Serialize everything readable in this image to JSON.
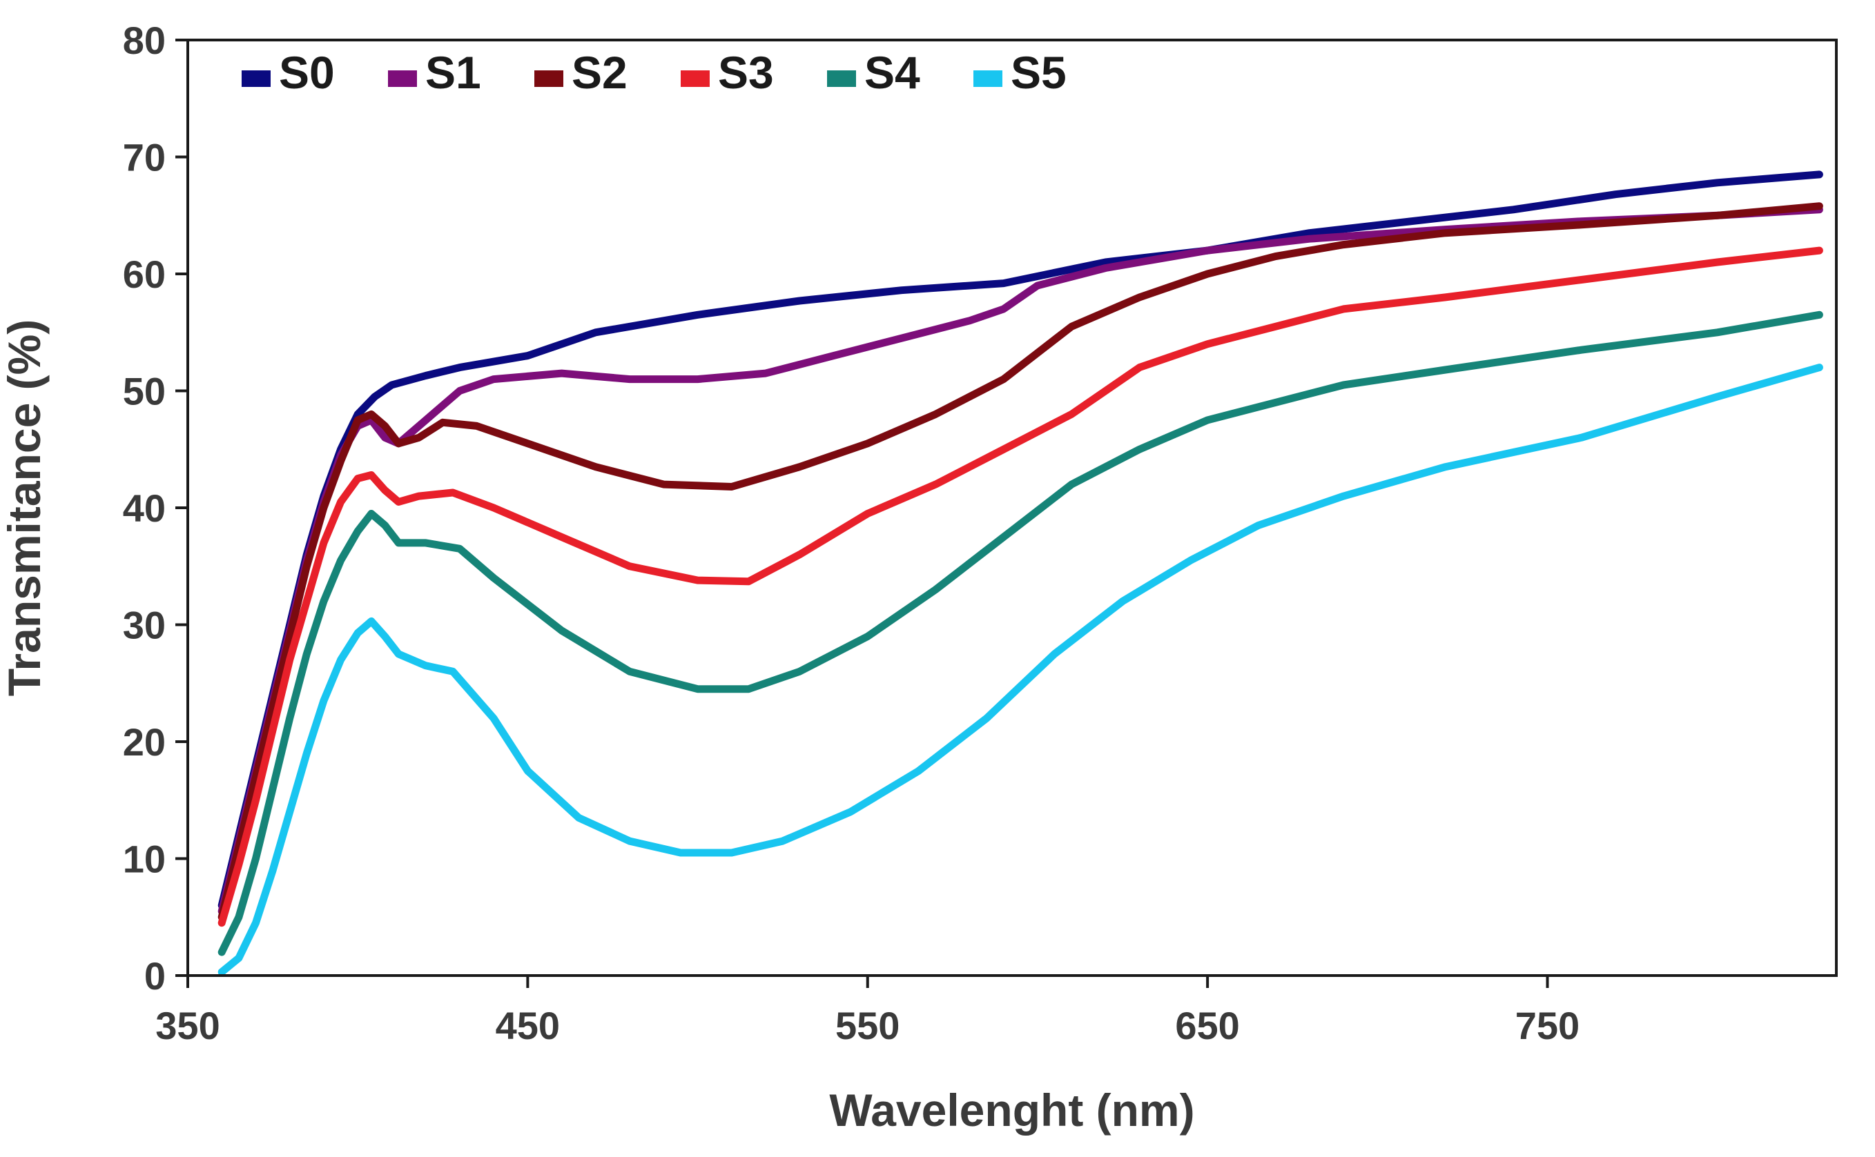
{
  "chart_data": {
    "type": "line",
    "title": "",
    "xlabel": "Wavelenght (nm)",
    "ylabel": "Transmitance (%)",
    "xlim": [
      350,
      835
    ],
    "ylim": [
      0,
      80
    ],
    "xticks": [
      350,
      450,
      550,
      650,
      750
    ],
    "yticks": [
      0,
      10,
      20,
      30,
      40,
      50,
      60,
      70,
      80
    ],
    "xtick_labels": [
      "350",
      "450",
      "550",
      "650",
      "750"
    ],
    "ytick_labels": [
      "0",
      "10",
      "20",
      "30",
      "40",
      "50",
      "60",
      "70",
      "80"
    ],
    "grid": false,
    "legend_position": "top-left",
    "series": [
      {
        "name": "S0",
        "color": "#0a0a80",
        "points": [
          [
            360,
            6
          ],
          [
            365,
            12
          ],
          [
            370,
            18
          ],
          [
            375,
            24
          ],
          [
            380,
            30
          ],
          [
            385,
            36
          ],
          [
            390,
            41
          ],
          [
            395,
            45
          ],
          [
            400,
            48
          ],
          [
            405,
            49.5
          ],
          [
            410,
            50.5
          ],
          [
            420,
            51.3
          ],
          [
            430,
            52
          ],
          [
            450,
            53
          ],
          [
            470,
            55
          ],
          [
            500,
            56.5
          ],
          [
            530,
            57.7
          ],
          [
            560,
            58.6
          ],
          [
            590,
            59.2
          ],
          [
            620,
            61
          ],
          [
            650,
            62
          ],
          [
            680,
            63.5
          ],
          [
            710,
            64.5
          ],
          [
            740,
            65.5
          ],
          [
            770,
            66.8
          ],
          [
            800,
            67.8
          ],
          [
            830,
            68.5
          ]
        ]
      },
      {
        "name": "S1",
        "color": "#7d0e7a",
        "points": [
          [
            360,
            5.5
          ],
          [
            365,
            11.5
          ],
          [
            370,
            17.5
          ],
          [
            375,
            23.5
          ],
          [
            380,
            29.5
          ],
          [
            385,
            35.5
          ],
          [
            390,
            40.5
          ],
          [
            395,
            44.5
          ],
          [
            400,
            47
          ],
          [
            404,
            47.5
          ],
          [
            408,
            46
          ],
          [
            412,
            45.5
          ],
          [
            420,
            47.5
          ],
          [
            430,
            50
          ],
          [
            440,
            51
          ],
          [
            460,
            51.5
          ],
          [
            480,
            51
          ],
          [
            500,
            51
          ],
          [
            520,
            51.5
          ],
          [
            540,
            53
          ],
          [
            560,
            54.5
          ],
          [
            580,
            56
          ],
          [
            590,
            57
          ],
          [
            600,
            59
          ],
          [
            620,
            60.5
          ],
          [
            650,
            62
          ],
          [
            680,
            63
          ],
          [
            720,
            63.8
          ],
          [
            760,
            64.5
          ],
          [
            800,
            65
          ],
          [
            830,
            65.5
          ]
        ]
      },
      {
        "name": "S2",
        "color": "#7b0a10",
        "points": [
          [
            360,
            5
          ],
          [
            365,
            11
          ],
          [
            370,
            17
          ],
          [
            375,
            23
          ],
          [
            380,
            29
          ],
          [
            385,
            35
          ],
          [
            390,
            40
          ],
          [
            395,
            44
          ],
          [
            400,
            47.5
          ],
          [
            404,
            48
          ],
          [
            408,
            47
          ],
          [
            412,
            45.5
          ],
          [
            418,
            46
          ],
          [
            425,
            47.3
          ],
          [
            435,
            47
          ],
          [
            450,
            45.5
          ],
          [
            470,
            43.5
          ],
          [
            490,
            42
          ],
          [
            510,
            41.8
          ],
          [
            530,
            43.5
          ],
          [
            550,
            45.5
          ],
          [
            570,
            48
          ],
          [
            590,
            51
          ],
          [
            610,
            55.5
          ],
          [
            630,
            58
          ],
          [
            650,
            60
          ],
          [
            670,
            61.5
          ],
          [
            690,
            62.5
          ],
          [
            720,
            63.5
          ],
          [
            760,
            64.2
          ],
          [
            800,
            65
          ],
          [
            830,
            65.8
          ]
        ]
      },
      {
        "name": "S3",
        "color": "#e8202a",
        "points": [
          [
            360,
            4.5
          ],
          [
            365,
            9.5
          ],
          [
            370,
            15
          ],
          [
            375,
            21
          ],
          [
            380,
            27
          ],
          [
            385,
            32
          ],
          [
            390,
            37
          ],
          [
            395,
            40.5
          ],
          [
            400,
            42.5
          ],
          [
            404,
            42.8
          ],
          [
            408,
            41.5
          ],
          [
            412,
            40.5
          ],
          [
            418,
            41
          ],
          [
            428,
            41.3
          ],
          [
            440,
            40
          ],
          [
            460,
            37.5
          ],
          [
            480,
            35
          ],
          [
            500,
            33.8
          ],
          [
            515,
            33.7
          ],
          [
            530,
            36
          ],
          [
            550,
            39.5
          ],
          [
            570,
            42
          ],
          [
            590,
            45
          ],
          [
            610,
            48
          ],
          [
            630,
            52
          ],
          [
            650,
            54
          ],
          [
            670,
            55.5
          ],
          [
            690,
            57
          ],
          [
            720,
            58
          ],
          [
            760,
            59.5
          ],
          [
            800,
            61
          ],
          [
            830,
            62
          ]
        ]
      },
      {
        "name": "S4",
        "color": "#168478",
        "points": [
          [
            360,
            2
          ],
          [
            365,
            5
          ],
          [
            370,
            10
          ],
          [
            375,
            16
          ],
          [
            380,
            22
          ],
          [
            385,
            27.5
          ],
          [
            390,
            32
          ],
          [
            395,
            35.5
          ],
          [
            400,
            38
          ],
          [
            404,
            39.5
          ],
          [
            408,
            38.5
          ],
          [
            412,
            37
          ],
          [
            420,
            37
          ],
          [
            430,
            36.5
          ],
          [
            440,
            34
          ],
          [
            460,
            29.5
          ],
          [
            480,
            26
          ],
          [
            500,
            24.5
          ],
          [
            515,
            24.5
          ],
          [
            530,
            26
          ],
          [
            550,
            29
          ],
          [
            570,
            33
          ],
          [
            590,
            37.5
          ],
          [
            610,
            42
          ],
          [
            630,
            45
          ],
          [
            650,
            47.5
          ],
          [
            670,
            49
          ],
          [
            690,
            50.5
          ],
          [
            720,
            51.8
          ],
          [
            760,
            53.5
          ],
          [
            800,
            55
          ],
          [
            830,
            56.5
          ]
        ]
      },
      {
        "name": "S5",
        "color": "#19c5f0",
        "points": [
          [
            360,
            0.3
          ],
          [
            365,
            1.5
          ],
          [
            370,
            4.5
          ],
          [
            375,
            9
          ],
          [
            380,
            14
          ],
          [
            385,
            19
          ],
          [
            390,
            23.5
          ],
          [
            395,
            27
          ],
          [
            400,
            29.3
          ],
          [
            404,
            30.3
          ],
          [
            408,
            29
          ],
          [
            412,
            27.5
          ],
          [
            420,
            26.5
          ],
          [
            428,
            26
          ],
          [
            440,
            22
          ],
          [
            450,
            17.5
          ],
          [
            465,
            13.5
          ],
          [
            480,
            11.5
          ],
          [
            495,
            10.5
          ],
          [
            510,
            10.5
          ],
          [
            525,
            11.5
          ],
          [
            545,
            14
          ],
          [
            565,
            17.5
          ],
          [
            585,
            22
          ],
          [
            605,
            27.5
          ],
          [
            625,
            32
          ],
          [
            645,
            35.5
          ],
          [
            665,
            38.5
          ],
          [
            690,
            41
          ],
          [
            720,
            43.5
          ],
          [
            760,
            46
          ],
          [
            800,
            49.5
          ],
          [
            830,
            52
          ]
        ]
      }
    ]
  }
}
